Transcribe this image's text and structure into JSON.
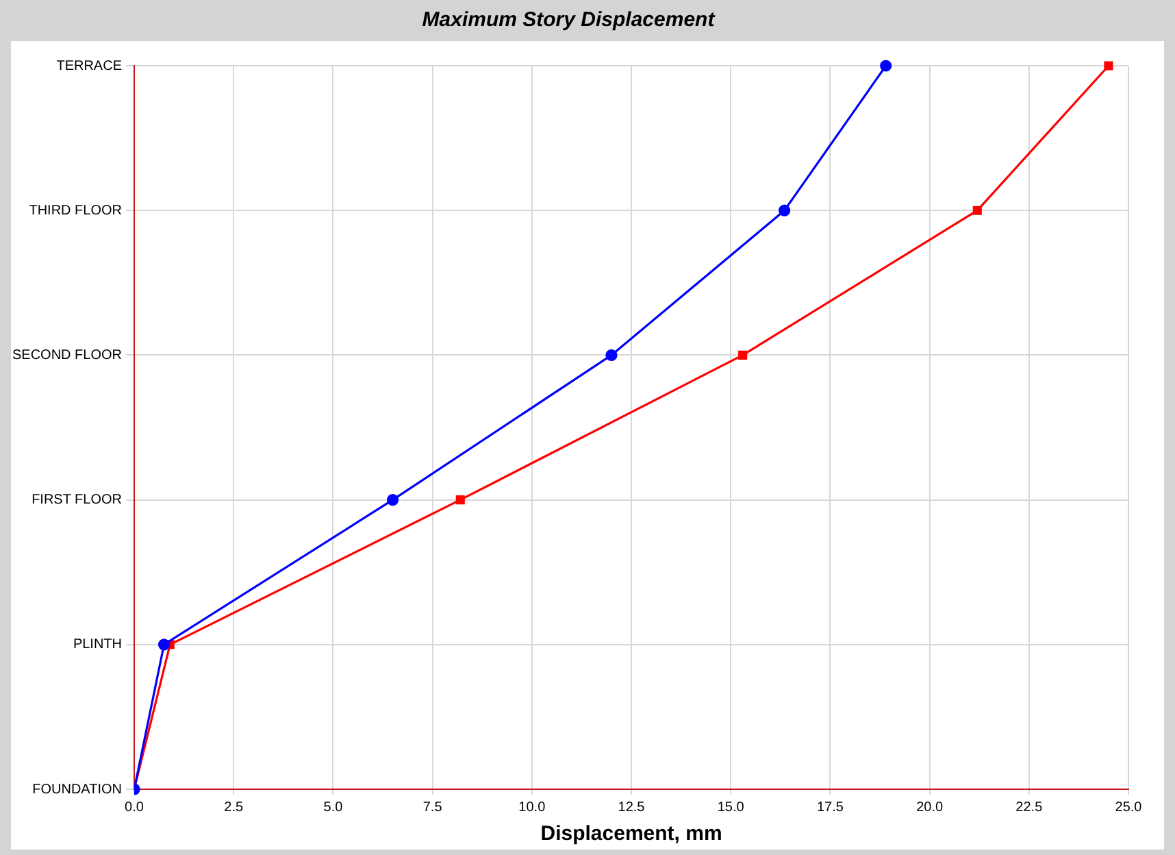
{
  "chart_data": {
    "type": "line",
    "orientation": "horizontal",
    "title": "Maximum Story Displacement",
    "xlabel": "Displacement, mm",
    "xlim": [
      0,
      25
    ],
    "xticks": [
      {
        "value": 0,
        "label": "0.0"
      },
      {
        "value": 2.5,
        "label": "2.5"
      },
      {
        "value": 5,
        "label": "5.0"
      },
      {
        "value": 7.5,
        "label": "7.5"
      },
      {
        "value": 10,
        "label": "10.0"
      },
      {
        "value": 12.5,
        "label": "12.5"
      },
      {
        "value": 15,
        "label": "15.0"
      },
      {
        "value": 17.5,
        "label": "17.5"
      },
      {
        "value": 20,
        "label": "20.0"
      },
      {
        "value": 22.5,
        "label": "22.5"
      },
      {
        "value": 25,
        "label": "25.0"
      }
    ],
    "categories": [
      "TERRACE",
      "THIRD FLOOR",
      "SECOND FLOOR",
      "FIRST FLOOR",
      "PLINTH",
      "FOUNDATION"
    ],
    "grid": true,
    "legend": false,
    "line_style": "solid",
    "series": [
      {
        "color": "#0000ff",
        "marker": "circle",
        "values": [
          18.9,
          16.35,
          12,
          6.5,
          0.75,
          0
        ]
      },
      {
        "color": "#ff0000",
        "marker": "square",
        "values": [
          24.5,
          21.2,
          15.3,
          8.2,
          0.9,
          0
        ]
      }
    ]
  }
}
